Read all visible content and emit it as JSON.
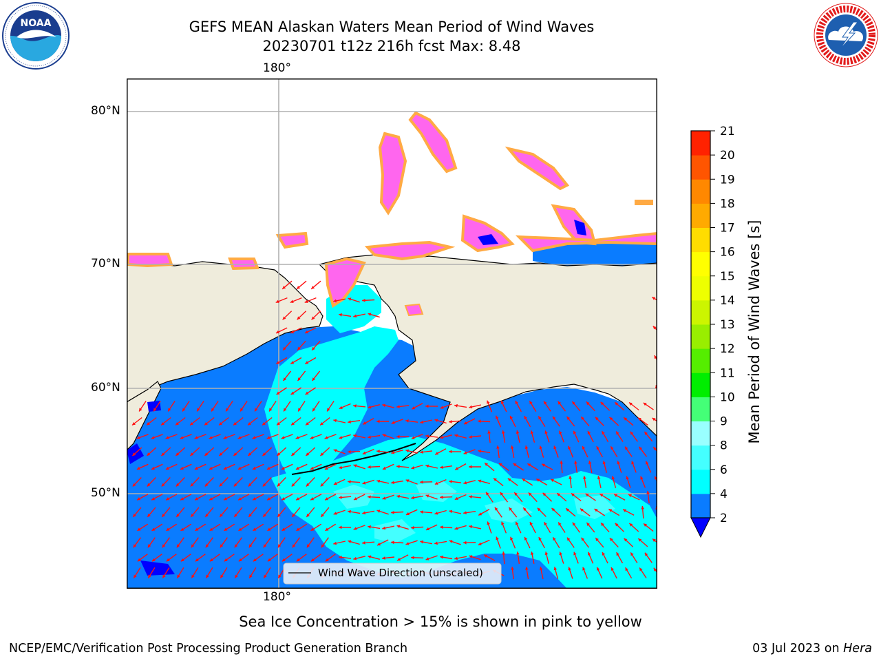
{
  "header": {
    "title_line1": "GEFS MEAN Alaskan Waters Mean Period of Wind Waves",
    "title_line2": "20230701 t12z 216h fcst   Max: 8.48"
  },
  "logos": {
    "noaa_text": "NOAA",
    "noaa_ring_text": "NATIONAL OCEANIC AND ATMOSPHERIC ADMINISTRATION · U.S. DEPARTMENT OF COMMERCE",
    "nws_ring_text": "NATIONAL WEATHER SERVICE"
  },
  "map": {
    "lon_label": "180°",
    "lat_labels": [
      "80°N",
      "70°N",
      "60°N",
      "50°N"
    ],
    "legend_label": "Wind Wave Direction (unscaled)",
    "colors": {
      "land": "#efecdc",
      "ocean_low": "#0a7cff",
      "ocean_mid": "#00ffff",
      "ocean_pale": "#44ffff",
      "ice_pink": "#ff66ee",
      "ice_orange": "#ffaa44",
      "ice_yellow": "#ffee22",
      "arrow": "#ff1111",
      "grid": "#b0b0b0"
    }
  },
  "colorbar": {
    "label": "Mean Period of Wind Waves [s]",
    "levels": [
      2,
      4,
      6,
      8,
      9,
      10,
      11,
      12,
      13,
      14,
      15,
      16,
      17,
      18,
      19,
      20,
      21
    ],
    "colors": [
      "#0a7cff",
      "#00ffff",
      "#44ffff",
      "#99ffff",
      "#44ff77",
      "#00ee00",
      "#55ee00",
      "#99ee00",
      "#ccf500",
      "#eeff00",
      "#ffff00",
      "#ffdd00",
      "#ffaa00",
      "#ff8800",
      "#ff5500",
      "#ff2200"
    ],
    "under_color": "#0000ff"
  },
  "footer": {
    "ice_note": "Sea Ice Concentration > 15% is shown in pink to yellow",
    "left": "NCEP/EMC/Verification Post Processing Product Generation Branch",
    "date": "03 Jul 2023",
    "on": "on",
    "machine": "Hera"
  }
}
